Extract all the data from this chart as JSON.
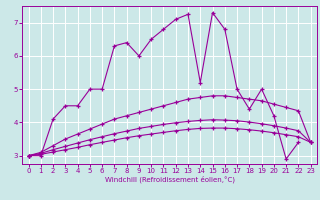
{
  "xlabel": "Windchill (Refroidissement éolien,°C)",
  "x": [
    0,
    1,
    2,
    3,
    4,
    5,
    6,
    7,
    8,
    9,
    10,
    11,
    12,
    13,
    14,
    15,
    16,
    17,
    18,
    19,
    20,
    21,
    22,
    23
  ],
  "line1": [
    3.0,
    3.0,
    4.1,
    4.5,
    4.5,
    5.0,
    5.0,
    6.3,
    6.4,
    6.0,
    6.5,
    6.8,
    7.1,
    7.25,
    5.2,
    7.3,
    6.8,
    5.0,
    4.4,
    5.0,
    4.2,
    2.9,
    3.4,
    null
  ],
  "line2": [
    3.0,
    3.1,
    3.3,
    3.5,
    3.65,
    3.8,
    3.95,
    4.1,
    4.2,
    4.3,
    4.4,
    4.5,
    4.6,
    4.7,
    4.75,
    4.8,
    4.8,
    4.75,
    4.7,
    4.65,
    4.55,
    4.45,
    4.35,
    3.4
  ],
  "line3": [
    3.0,
    3.07,
    3.18,
    3.28,
    3.38,
    3.48,
    3.57,
    3.66,
    3.74,
    3.82,
    3.88,
    3.94,
    3.99,
    4.03,
    4.06,
    4.08,
    4.07,
    4.05,
    4.01,
    3.96,
    3.9,
    3.83,
    3.75,
    3.4
  ],
  "line4": [
    3.0,
    3.04,
    3.11,
    3.18,
    3.25,
    3.33,
    3.4,
    3.47,
    3.54,
    3.6,
    3.65,
    3.7,
    3.75,
    3.79,
    3.82,
    3.83,
    3.83,
    3.81,
    3.78,
    3.74,
    3.69,
    3.63,
    3.57,
    3.4
  ],
  "line_color": "#990099",
  "bg_color": "#cce8e8",
  "grid_color": "#ffffff",
  "ylim": [
    2.75,
    7.5
  ],
  "xlim": [
    -0.5,
    23.5
  ],
  "yticks": [
    3,
    4,
    5,
    6,
    7
  ],
  "xticks": [
    0,
    1,
    2,
    3,
    4,
    5,
    6,
    7,
    8,
    9,
    10,
    11,
    12,
    13,
    14,
    15,
    16,
    17,
    18,
    19,
    20,
    21,
    22,
    23
  ]
}
